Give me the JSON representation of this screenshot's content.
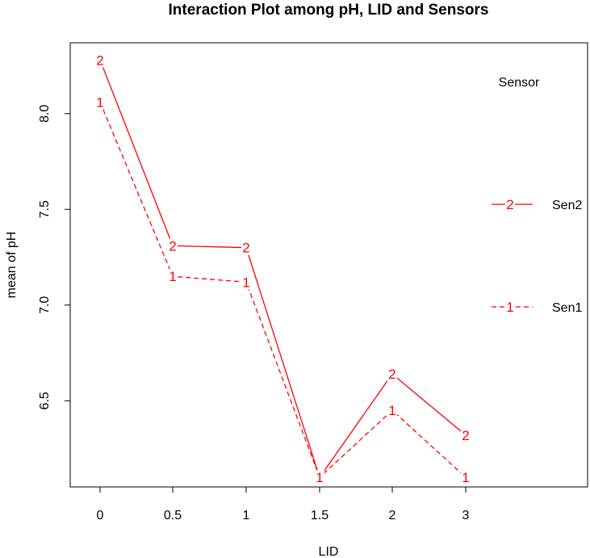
{
  "chart_data": {
    "type": "line",
    "title": "Interaction Plot among pH, LID and Sensors",
    "xlabel": "LID",
    "ylabel": "mean of  pH",
    "categories": [
      "0",
      "0.5",
      "1",
      "1.5",
      "2",
      "3"
    ],
    "yticks": [
      "6.5",
      "7.0",
      "7.5",
      "8.0"
    ],
    "ylim": [
      6.05,
      8.37
    ],
    "legend_title": "Sensor",
    "legend_position": "right",
    "series": [
      {
        "name": "Sen2",
        "symbol": "2",
        "line_style": "solid",
        "color": "#ff0000",
        "values": [
          8.28,
          7.31,
          7.3,
          6.1,
          6.64,
          6.32
        ]
      },
      {
        "name": "Sen1",
        "symbol": "1",
        "line_style": "dashed",
        "color": "#ff0000",
        "values": [
          8.06,
          7.15,
          7.12,
          6.1,
          6.45,
          6.1
        ]
      }
    ]
  }
}
